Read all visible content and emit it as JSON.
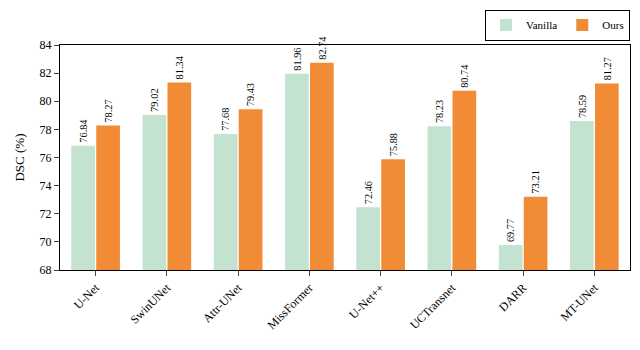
{
  "chart_data": {
    "type": "bar",
    "categories": [
      "U-Net",
      "SwinUNet",
      "Attr-UNet",
      "MissFormer",
      "U-Net++",
      "UCTransnet",
      "DARR",
      "MT-UNet"
    ],
    "series": [
      {
        "name": "Vanilla",
        "color": "#c3e3d0",
        "values": [
          76.84,
          79.02,
          77.68,
          81.96,
          72.46,
          78.23,
          69.77,
          78.59
        ]
      },
      {
        "name": "Ours",
        "color": "#f28b36",
        "values": [
          78.27,
          81.34,
          79.43,
          82.74,
          75.88,
          80.74,
          73.21,
          81.27
        ]
      }
    ],
    "y_label": "DSC (%)",
    "ylim": [
      68,
      84
    ],
    "yticks": [
      68,
      70,
      72,
      74,
      76,
      78,
      80,
      82,
      84
    ],
    "grid": false,
    "legend": "upper right",
    "data_labels": true
  }
}
